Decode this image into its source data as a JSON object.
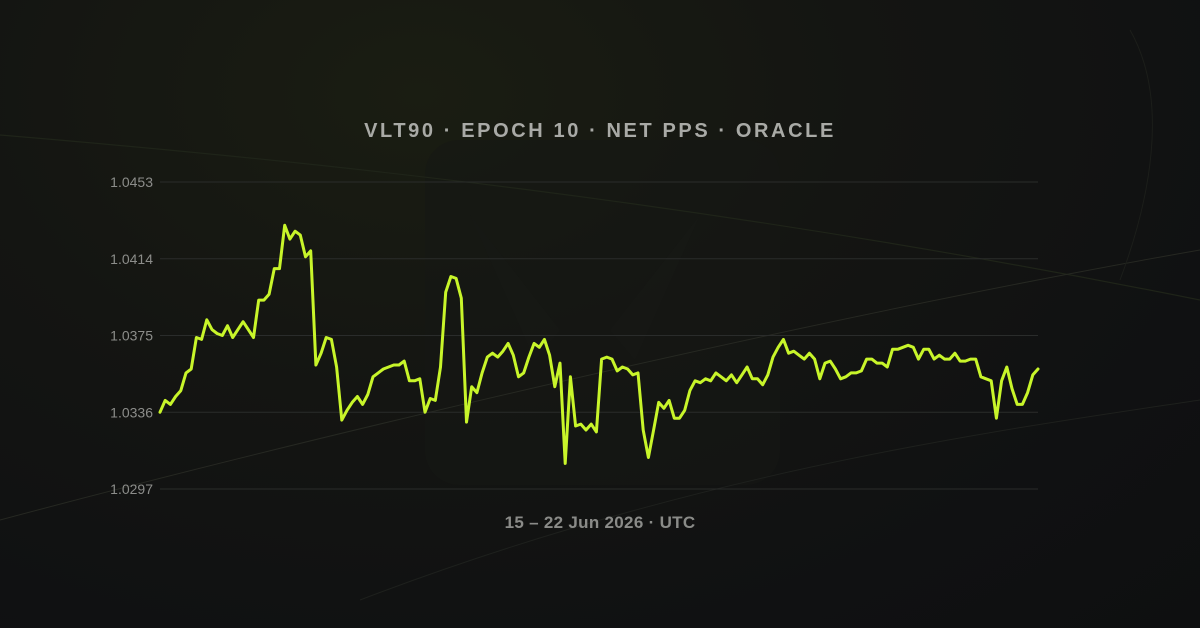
{
  "chart_data": {
    "type": "line",
    "title": "VLT90 · EPOCH 10 · NET PPS · ORACLE",
    "xlabel": "15 – 22 Jun 2026 · UTC",
    "ylabel": "",
    "ylim": [
      1.0297,
      1.0453
    ],
    "yticks": [
      "1.0453",
      "1.0414",
      "1.0375",
      "1.0336",
      "1.0297"
    ],
    "grid": true,
    "line_color": "#c8f52a",
    "series": [
      {
        "values": [
          1.0336,
          1.0342,
          1.034,
          1.0344,
          1.0347,
          1.0356,
          1.0358,
          1.0374,
          1.0373,
          1.0383,
          1.0378,
          1.0376,
          1.0375,
          1.038,
          1.0374,
          1.0378,
          1.0382,
          1.0378,
          1.0374,
          1.0393,
          1.0393,
          1.0396,
          1.0409,
          1.0409,
          1.0431,
          1.0424,
          1.0428,
          1.0426,
          1.0415,
          1.0418,
          1.036,
          1.0366,
          1.0374,
          1.0373,
          1.0359,
          1.0332,
          1.0337,
          1.0341,
          1.0344,
          1.034,
          1.0345,
          1.0354,
          1.0356,
          1.0358,
          1.0359,
          1.036,
          1.036,
          1.0362,
          1.0352,
          1.0352,
          1.0353,
          1.0336,
          1.0343,
          1.0342,
          1.0359,
          1.0397,
          1.0405,
          1.0404,
          1.0394,
          1.0331,
          1.0349,
          1.0346,
          1.0356,
          1.0364,
          1.0366,
          1.0364,
          1.0367,
          1.0371,
          1.0365,
          1.0354,
          1.0356,
          1.0364,
          1.0371,
          1.0369,
          1.0373,
          1.0365,
          1.0349,
          1.0361,
          1.031,
          1.0354,
          1.0329,
          1.033,
          1.0327,
          1.033,
          1.0326,
          1.0363,
          1.0364,
          1.0363,
          1.0357,
          1.0359,
          1.0358,
          1.0355,
          1.0356,
          1.0327,
          1.0313,
          1.0327,
          1.0341,
          1.0338,
          1.0342,
          1.0333,
          1.0333,
          1.0337,
          1.0347,
          1.0352,
          1.0351,
          1.0353,
          1.0352,
          1.0356,
          1.0354,
          1.0352,
          1.0355,
          1.0351,
          1.0355,
          1.0359,
          1.0353,
          1.0353,
          1.035,
          1.0355,
          1.0364,
          1.0369,
          1.0373,
          1.0366,
          1.0367,
          1.0365,
          1.0363,
          1.0366,
          1.0363,
          1.0353,
          1.0361,
          1.0362,
          1.0358,
          1.0353,
          1.0354,
          1.0356,
          1.0356,
          1.0357,
          1.0363,
          1.0363,
          1.0361,
          1.0361,
          1.0359,
          1.0368,
          1.0368,
          1.0369,
          1.037,
          1.0369,
          1.0363,
          1.0368,
          1.0368,
          1.0363,
          1.0365,
          1.0363,
          1.0363,
          1.0366,
          1.0362,
          1.0362,
          1.0363,
          1.0363,
          1.0354,
          1.0353,
          1.0352,
          1.0333,
          1.0352,
          1.0359,
          1.0348,
          1.034,
          1.034,
          1.0346,
          1.0355,
          1.0358
        ]
      }
    ]
  }
}
